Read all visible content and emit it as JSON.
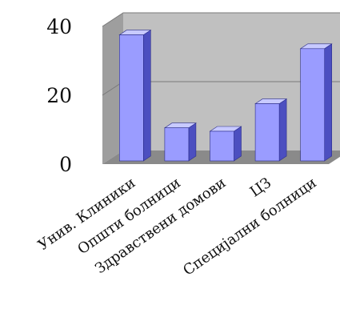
{
  "chart_data": {
    "type": "bar",
    "style": "3d-column",
    "categories": [
      "Унив. Клиники",
      "Општи болници",
      "Здравствени домови",
      "ЦЗ",
      "Специјални болници"
    ],
    "values": [
      38,
      11,
      10,
      18,
      34
    ],
    "title": "",
    "xlabel": "",
    "ylabel": "",
    "ylim": [
      0,
      40
    ],
    "yticks": [
      "0",
      "20",
      "40"
    ],
    "grid": true,
    "legend": "none",
    "colors": {
      "bar_front": "#9a9cff",
      "bar_side": "#4c4fc0",
      "bar_top": "#c8caff",
      "wall": "#c0c0c0",
      "floor": "#8a8a8a",
      "gridline": "#7a7a7a"
    }
  }
}
